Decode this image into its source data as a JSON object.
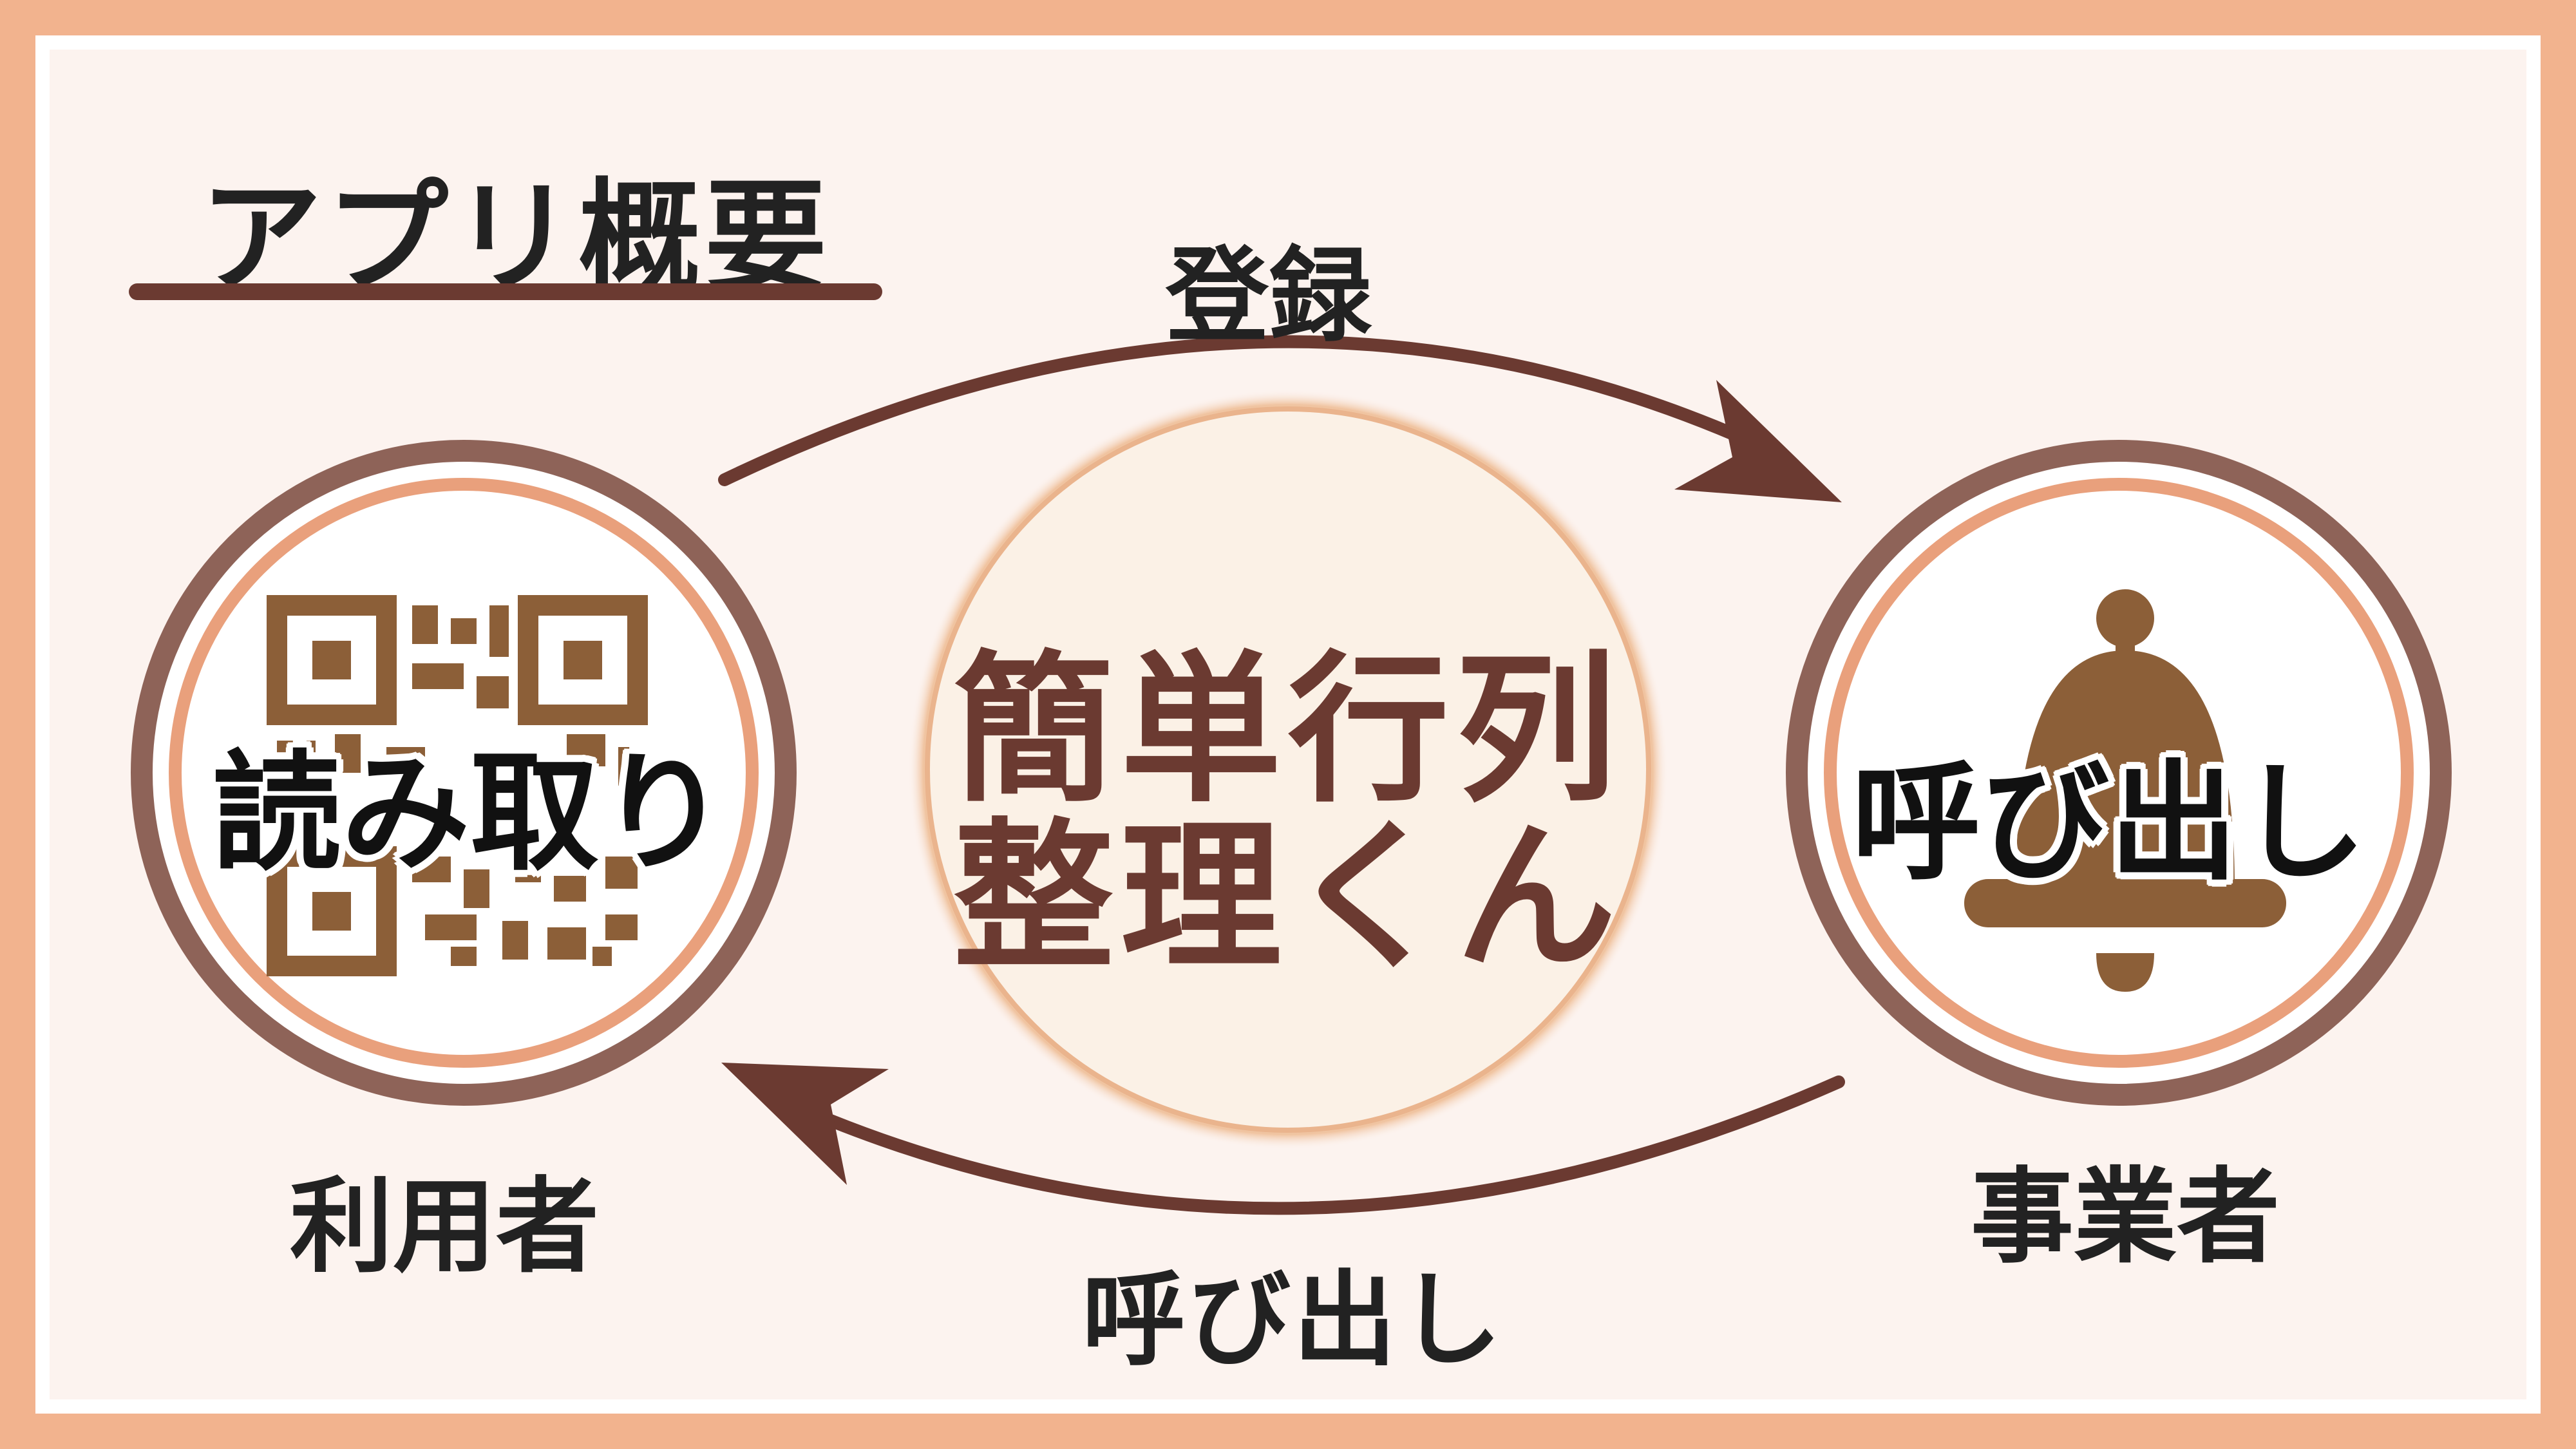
{
  "title": "アプリ概要",
  "center": {
    "line1": "簡単行列",
    "line2": "整理くん"
  },
  "top_arrow_label": "登録",
  "bottom_arrow_label": "呼び出し",
  "user": {
    "circle_label": "読み取り",
    "caption": "利用者",
    "icon": "qr-code-icon"
  },
  "operator": {
    "circle_label": "呼び出し",
    "caption": "事業者",
    "icon": "service-bell-icon"
  },
  "colors": {
    "frame": "#f2b38e",
    "background": "#fcf3ef",
    "dark_brown": "#6b3a31",
    "ring_outer": "#8e6358",
    "ring_inner": "#e9a07c",
    "icon_brown": "#8c5f38",
    "center_fill": "#fbf1e6"
  }
}
